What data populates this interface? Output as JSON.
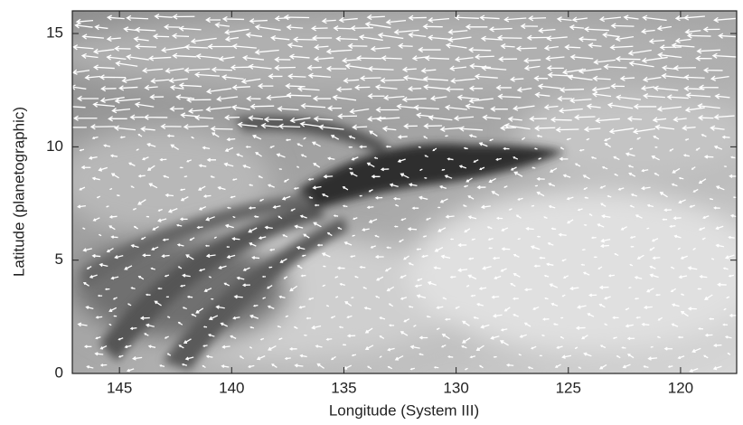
{
  "chart_data": {
    "type": "vector-field",
    "xlabel": "Longitude (System III)",
    "ylabel": "Latitude (planetographic)",
    "xlim": [
      147.1,
      117.5
    ],
    "xticks": [
      145,
      140,
      135,
      130,
      125,
      120
    ],
    "ylim": [
      0,
      16
    ],
    "yticks": [
      0,
      5,
      10,
      15
    ]
  }
}
